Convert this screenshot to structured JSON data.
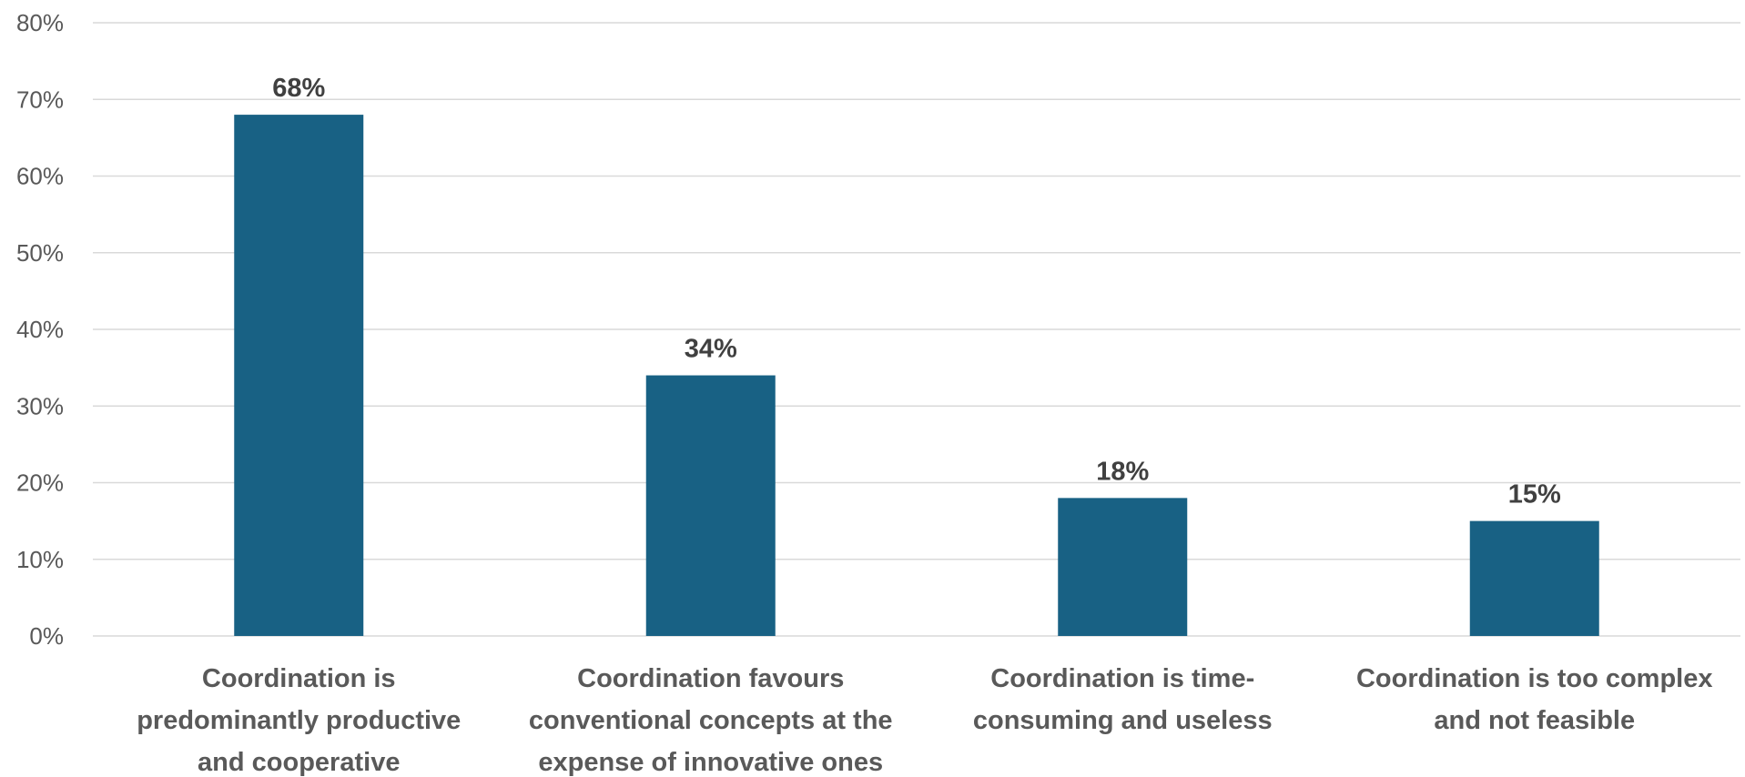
{
  "chart_data": {
    "type": "bar",
    "title": "",
    "xlabel": "",
    "ylabel": "",
    "categories": [
      [
        "Coordination is",
        "predominantly productive",
        "and cooperative"
      ],
      [
        "Coordination favours",
        "conventional concepts at the",
        "expense of innovative ones"
      ],
      [
        "Coordination is time-",
        "consuming and useless"
      ],
      [
        "Coordination is too complex",
        "and not feasible"
      ]
    ],
    "values": [
      68,
      34,
      18,
      15
    ],
    "value_labels": [
      "68%",
      "34%",
      "18%",
      "15%"
    ],
    "ylim": [
      0,
      80
    ],
    "y_ticks": [
      0,
      10,
      20,
      30,
      40,
      50,
      60,
      70,
      80
    ],
    "y_tick_labels": [
      "0%",
      "10%",
      "20%",
      "30%",
      "40%",
      "50%",
      "60%",
      "70%",
      "80%"
    ],
    "grid": true,
    "legend": "none",
    "bar_color": "#186184"
  }
}
